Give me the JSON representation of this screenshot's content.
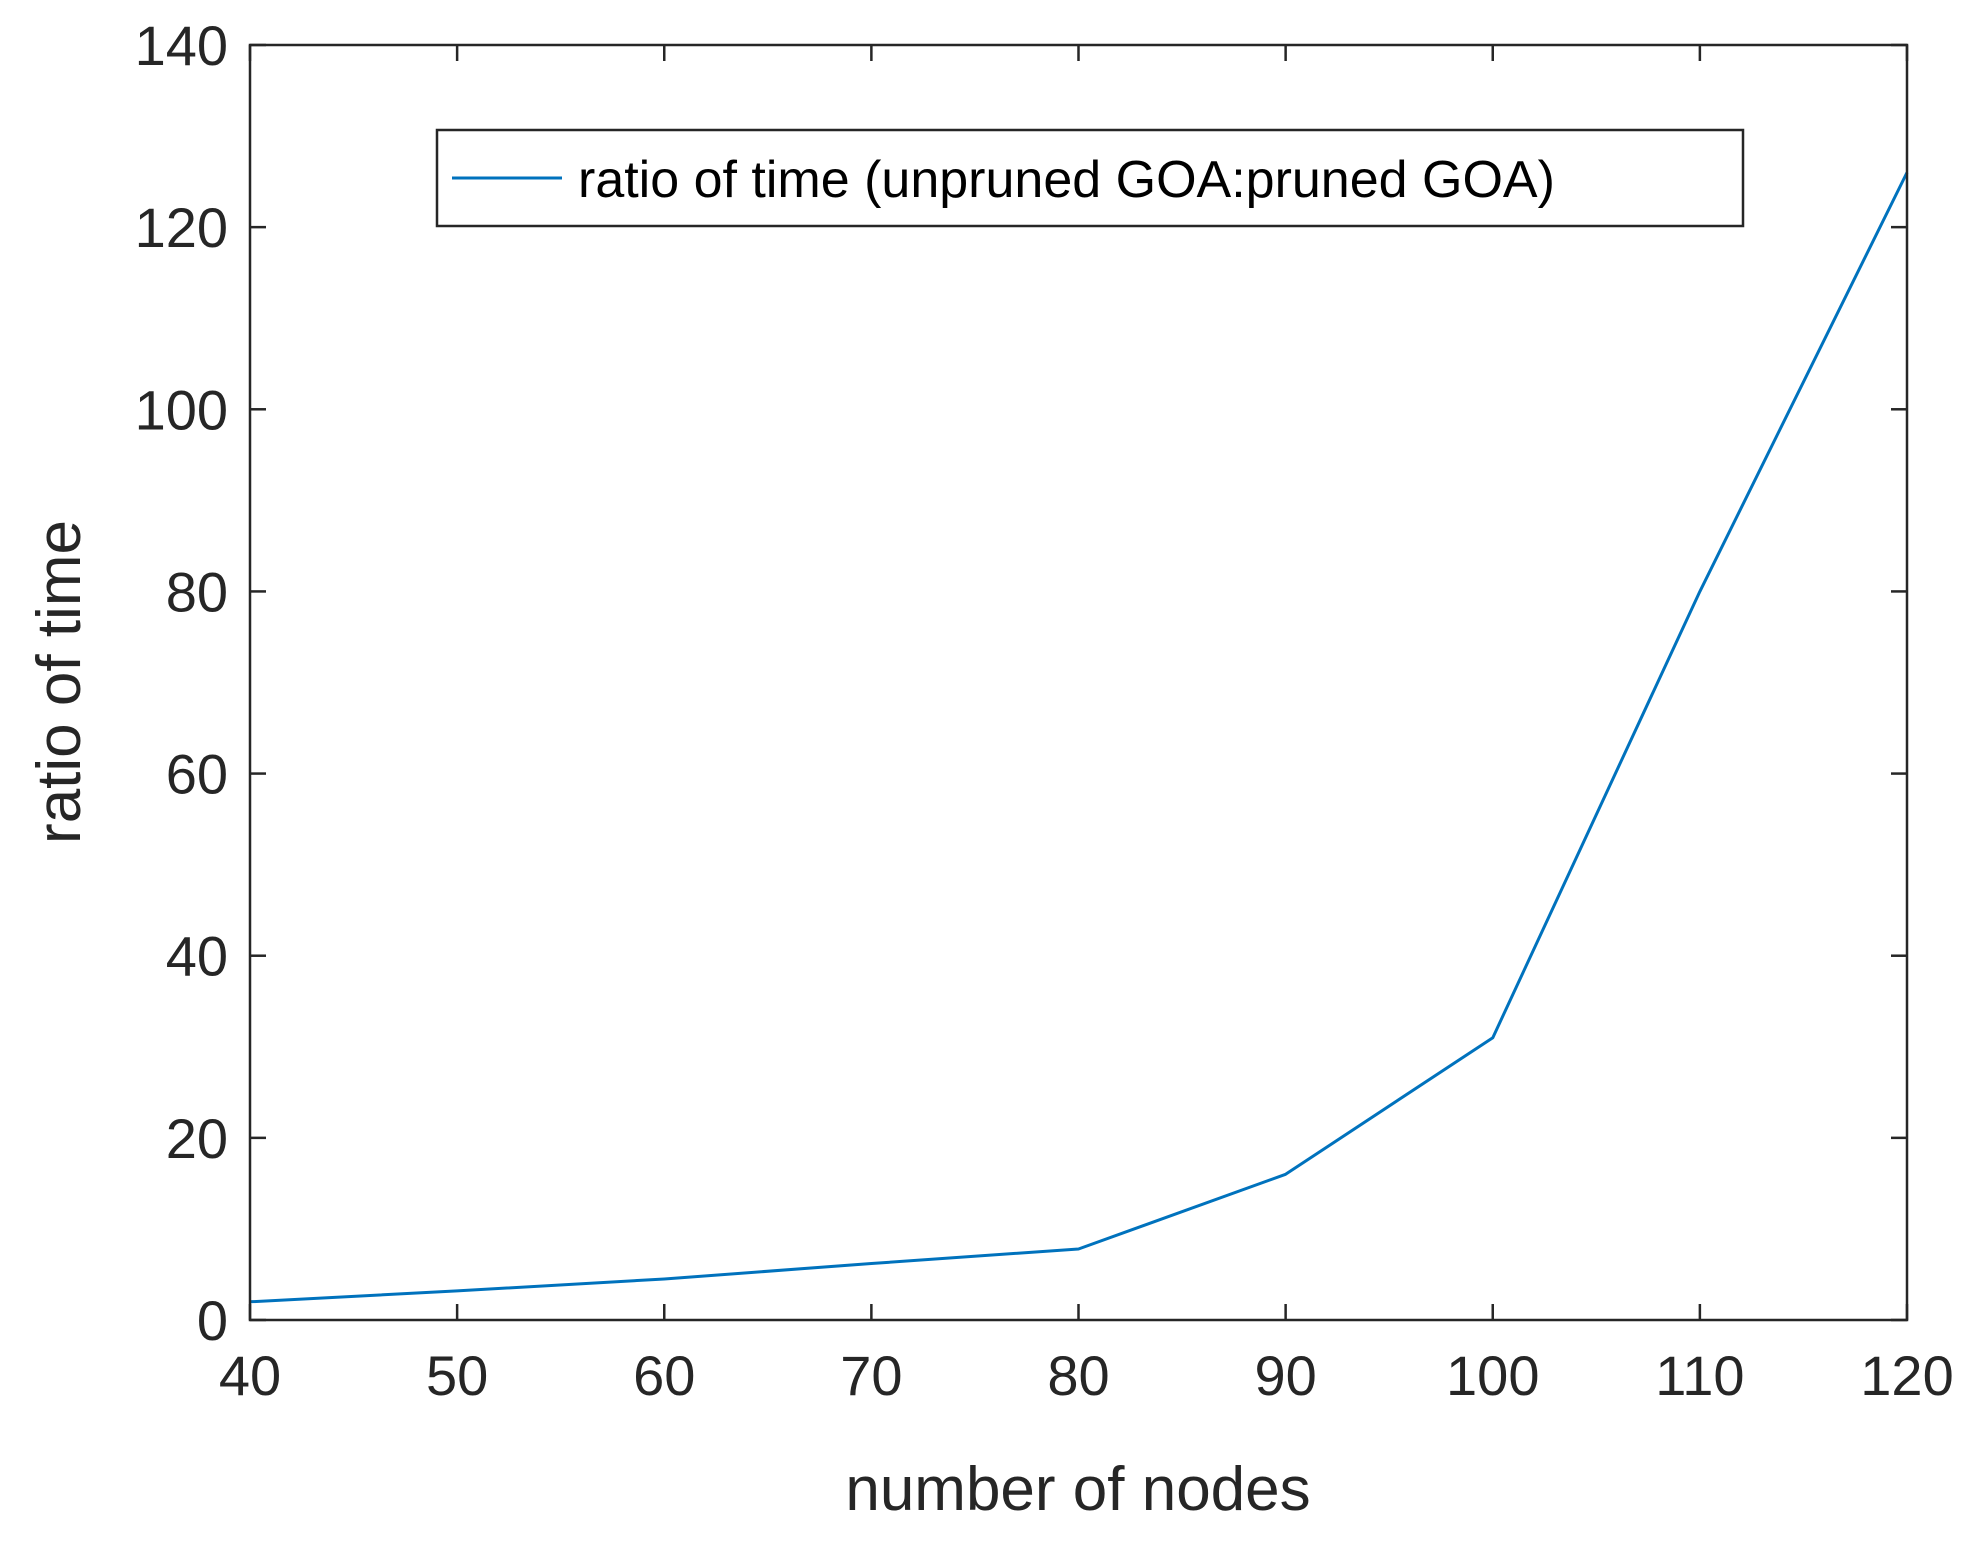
{
  "chart_data": {
    "type": "line",
    "title": "",
    "xlabel": "number of nodes",
    "ylabel": "ratio of time",
    "xlim": [
      40,
      120
    ],
    "ylim": [
      0,
      140
    ],
    "xticks": [
      40,
      50,
      60,
      70,
      80,
      90,
      100,
      110,
      120
    ],
    "yticks": [
      0,
      20,
      40,
      60,
      80,
      100,
      120,
      140
    ],
    "grid": false,
    "legend_position": "top-right",
    "series": [
      {
        "name": "ratio of time (unpruned GOA:pruned GOA)",
        "color": "#0072BD",
        "x": [
          40,
          50,
          60,
          70,
          80,
          90,
          100,
          110,
          120
        ],
        "y": [
          2,
          3.2,
          4.5,
          6.2,
          7.8,
          16,
          31,
          80,
          126
        ]
      }
    ]
  }
}
